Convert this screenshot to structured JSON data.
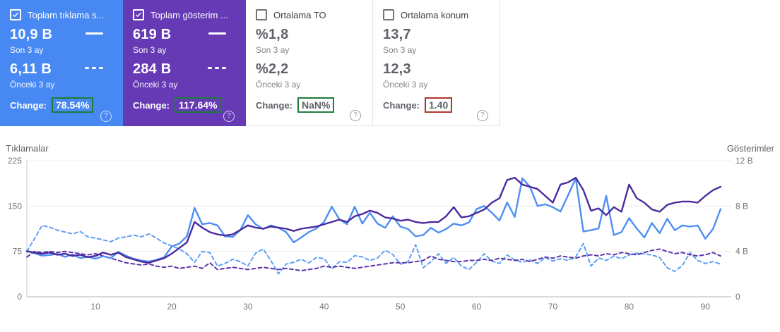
{
  "cards": [
    {
      "title": "Toplam tıklama s...",
      "checked": true,
      "color": "#4788f3",
      "current": {
        "value": "10,9 B",
        "label": "Son 3 ay"
      },
      "previous": {
        "value": "6,11 B",
        "label": "Önceki 3 ay"
      },
      "change_label": "Change:",
      "change_value": "78.54%",
      "change_status": "green"
    },
    {
      "title": "Toplam gösterim ...",
      "checked": true,
      "color": "#6639b5",
      "current": {
        "value": "619 B",
        "label": "Son 3 ay"
      },
      "previous": {
        "value": "284 B",
        "label": "Önceki 3 ay"
      },
      "change_label": "Change:",
      "change_value": "117.64%",
      "change_status": "green"
    },
    {
      "title": "Ortalama TO",
      "checked": false,
      "current": {
        "value": "%1,8",
        "label": "Son 3 ay"
      },
      "previous": {
        "value": "%2,2",
        "label": "Önceki 3 ay"
      },
      "change_label": "Change:",
      "change_value": "NaN%",
      "change_status": "green"
    },
    {
      "title": "Ortalama konum",
      "checked": false,
      "current": {
        "value": "13,7",
        "label": "Son 3 ay"
      },
      "previous": {
        "value": "12,3",
        "label": "Önceki 3 ay"
      },
      "change_label": "Change:",
      "change_value": "1.40",
      "change_status": "red"
    }
  ],
  "glyphs": {
    "help": "?"
  },
  "colors": {
    "card_clicks": "#4788f3",
    "card_impressions": "#6639b5",
    "change_positive_border": "#1e7d3a",
    "change_negative_border": "#b3352e",
    "gridline": "#ececec",
    "axis_line": "#b3b3b3",
    "tick_text": "#757575"
  },
  "chart_data": {
    "type": "line",
    "ylabel_left": "Tıklamalar",
    "ylabel_right": "Gösterimler",
    "left_axis": {
      "ticks": [
        225,
        150,
        75,
        0
      ],
      "range": [
        0,
        225
      ]
    },
    "right_axis": {
      "ticks": [
        "12 B",
        "8 B",
        "4 B",
        "0"
      ],
      "tick_values": [
        12,
        8,
        4,
        0
      ],
      "range": [
        0,
        12
      ],
      "unit": "B"
    },
    "x_axis": {
      "ticks": [
        10,
        20,
        30,
        40,
        50,
        60,
        70,
        80,
        90
      ],
      "range": [
        1,
        92
      ]
    },
    "series": [
      {
        "name": "Tıklamalar - Son 3 ay",
        "axis": "left",
        "style": "solid",
        "color": "#4d8ff2",
        "values": [
          76,
          72,
          68,
          69,
          71,
          66,
          70,
          64,
          66,
          63,
          67,
          64,
          74,
          68,
          63,
          60,
          58,
          61,
          65,
          83,
          88,
          100,
          147,
          120,
          122,
          118,
          100,
          99,
          110,
          135,
          120,
          112,
          118,
          114,
          107,
          90,
          98,
          107,
          113,
          124,
          149,
          128,
          120,
          149,
          121,
          139,
          121,
          114,
          133,
          116,
          112,
          100,
          102,
          114,
          106,
          112,
          121,
          118,
          123,
          145,
          150,
          139,
          126,
          156,
          132,
          196,
          182,
          150,
          153,
          148,
          141,
          168,
          196,
          108,
          110,
          113,
          167,
          102,
          107,
          130,
          113,
          98,
          122,
          105,
          129,
          110,
          118,
          116,
          118,
          96,
          112,
          145
        ]
      },
      {
        "name": "Tıklamalar - Önceki 3 ay",
        "axis": "left",
        "style": "dashed",
        "color": "#5f9ef5",
        "values": [
          75,
          96,
          118,
          115,
          110,
          107,
          104,
          108,
          99,
          97,
          94,
          91,
          97,
          99,
          102,
          99,
          104,
          97,
          89,
          84,
          79,
          71,
          57,
          75,
          73,
          51,
          55,
          62,
          58,
          51,
          72,
          79,
          60,
          38,
          54,
          57,
          62,
          56,
          65,
          63,
          46,
          58,
          57,
          68,
          66,
          60,
          64,
          77,
          70,
          54,
          58,
          86,
          48,
          58,
          71,
          55,
          65,
          51,
          45,
          57,
          71,
          59,
          55,
          69,
          61,
          57,
          61,
          55,
          65,
          59,
          63,
          60,
          66,
          88,
          51,
          64,
          60,
          67,
          63,
          69,
          72,
          71,
          69,
          65,
          48,
          42,
          52,
          73,
          60,
          55,
          58,
          54
        ]
      },
      {
        "name": "Gösterimler - Son 3 ay",
        "axis": "right",
        "style": "solid",
        "color": "#4b2a9d",
        "values": [
          4.0,
          3.9,
          3.8,
          3.9,
          3.7,
          3.8,
          3.6,
          3.7,
          3.5,
          3.6,
          3.9,
          3.7,
          3.9,
          3.5,
          3.3,
          3.1,
          3.0,
          3.2,
          3.4,
          3.8,
          4.3,
          4.8,
          6.6,
          6.1,
          5.7,
          5.5,
          5.4,
          5.5,
          5.9,
          6.3,
          6.1,
          6.0,
          6.2,
          6.1,
          6.0,
          5.8,
          6.0,
          6.1,
          6.2,
          6.4,
          6.6,
          6.8,
          6.6,
          7.1,
          7.3,
          7.6,
          7.4,
          7.0,
          6.9,
          6.7,
          6.8,
          6.6,
          6.5,
          6.6,
          6.6,
          7.1,
          7.9,
          7.0,
          7.1,
          7.4,
          7.7,
          8.3,
          8.7,
          10.3,
          10.5,
          9.9,
          9.7,
          9.5,
          8.9,
          8.3,
          9.9,
          10.1,
          10.5,
          9.4,
          7.6,
          7.8,
          7.2,
          7.9,
          7.5,
          9.9,
          8.7,
          8.3,
          7.7,
          7.5,
          8.1,
          8.3,
          8.4,
          8.4,
          8.3,
          8.9,
          9.4,
          9.7
        ]
      },
      {
        "name": "Gösterimler - Önceki 3 ay",
        "axis": "right",
        "style": "dashed",
        "color": "#5b37ab",
        "values": [
          3.5,
          4.0,
          3.9,
          4.0,
          3.9,
          4.0,
          3.9,
          3.8,
          3.7,
          3.8,
          3.6,
          3.4,
          3.2,
          3.0,
          2.9,
          2.8,
          2.9,
          2.7,
          2.6,
          2.7,
          2.5,
          2.6,
          2.7,
          2.5,
          3.0,
          2.4,
          2.5,
          2.6,
          2.5,
          2.4,
          2.5,
          2.6,
          2.5,
          2.4,
          2.5,
          2.4,
          2.3,
          2.4,
          2.5,
          2.7,
          2.6,
          2.7,
          2.6,
          2.5,
          2.6,
          2.7,
          2.8,
          2.9,
          3.0,
          3.0,
          3.0,
          3.1,
          3.2,
          3.6,
          3.3,
          3.2,
          3.1,
          3.1,
          3.2,
          3.2,
          3.3,
          3.2,
          3.4,
          3.3,
          3.2,
          3.3,
          3.1,
          3.3,
          3.5,
          3.4,
          3.6,
          3.5,
          3.4,
          3.6,
          3.7,
          3.6,
          3.8,
          3.7,
          3.9,
          3.8,
          3.7,
          3.9,
          4.1,
          4.2,
          4.0,
          3.8,
          3.9,
          3.7,
          3.6,
          3.7,
          3.9,
          3.6
        ]
      }
    ]
  }
}
